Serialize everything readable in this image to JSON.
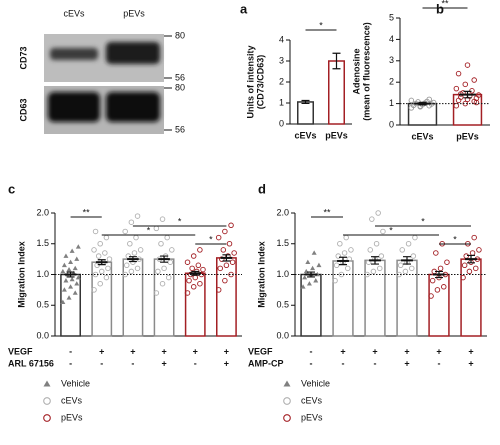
{
  "blot": {
    "columns": [
      "cEVs",
      "pEVs"
    ],
    "rows": [
      {
        "label": "CD73",
        "markers": [
          80,
          56
        ]
      },
      {
        "label": "CD63",
        "markers": [
          80,
          56
        ]
      }
    ]
  },
  "chart_data": [
    {
      "type": "bar",
      "panel": "a",
      "ylabel": [
        "Units of intensity",
        "(CD73/CD63)"
      ],
      "categories": [
        "cEVs",
        "pEVs"
      ],
      "values": [
        1.05,
        3.0
      ],
      "errors": [
        0.07,
        0.37
      ],
      "colors": [
        "#333333",
        "#a31f24"
      ],
      "ylim": [
        0,
        4
      ],
      "yticks": [
        0,
        1,
        2,
        3,
        4
      ],
      "significance": [
        {
          "between": [
            0,
            1
          ],
          "label": "*"
        }
      ]
    },
    {
      "type": "bar",
      "panel": "b",
      "ylabel": [
        "Adenosine",
        "(mean of fluorescence)"
      ],
      "categories": [
        "cEVs",
        "pEVs"
      ],
      "values": [
        1.0,
        1.42
      ],
      "errors": [
        0.06,
        0.15
      ],
      "colors": [
        "#333333",
        "#a31f24"
      ],
      "point_colors": [
        "#999999",
        "#a31f24"
      ],
      "points": [
        [
          0.8,
          0.85,
          0.9,
          0.92,
          0.95,
          0.98,
          1.0,
          1.02,
          1.05,
          1.08,
          1.1,
          1.15,
          0.88,
          1.2
        ],
        [
          0.9,
          1.0,
          1.1,
          1.15,
          1.2,
          1.25,
          1.3,
          1.35,
          1.4,
          1.5,
          1.6,
          1.7,
          1.9,
          2.1,
          2.4,
          2.8,
          1.05,
          1.45
        ]
      ],
      "ylim": [
        0,
        5
      ],
      "yticks": [
        0,
        1,
        2,
        3,
        4,
        5
      ],
      "reference_line": 1,
      "significance": [
        {
          "between": [
            0,
            1
          ],
          "label": "**"
        }
      ]
    },
    {
      "type": "bar",
      "panel": "c",
      "ylabel": [
        "Migration Index"
      ],
      "ylim": [
        0,
        2
      ],
      "yticks": [
        {
          "value": 0,
          "label": "0.0"
        },
        {
          "value": 0.5,
          "label": "0.5"
        },
        {
          "value": 1,
          "label": "1.0"
        },
        {
          "value": 1.5,
          "label": "1.5"
        },
        {
          "value": 2,
          "label": "2.0"
        }
      ],
      "reference_line": 1,
      "series": [
        {
          "name": "Vehicle",
          "marker": "triangle",
          "color": "#808080",
          "bar_color": "#333333",
          "values": [
            1.0
          ],
          "errors": [
            0.04
          ],
          "points": [
            [
              0.55,
              0.62,
              0.7,
              0.75,
              0.8,
              0.85,
              0.9,
              0.92,
              0.95,
              1.0,
              1.02,
              1.05,
              1.08,
              1.1,
              1.15,
              1.2,
              1.25,
              1.3,
              1.38,
              1.45
            ]
          ]
        },
        {
          "name": "cEVs",
          "marker": "circle",
          "color": "#b0b0b0",
          "bar_color": "#8a8a8a",
          "values": [
            1.2,
            1.25,
            1.25
          ],
          "errors": [
            0.04,
            0.04,
            0.05
          ],
          "points": [
            [
              0.75,
              0.85,
              0.95,
              1.0,
              1.05,
              1.1,
              1.15,
              1.2,
              1.25,
              1.3,
              1.35,
              1.4,
              1.5,
              1.6,
              1.7
            ],
            [
              1.0,
              1.05,
              1.1,
              1.15,
              1.2,
              1.25,
              1.3,
              1.35,
              1.4,
              1.5,
              1.6,
              1.7,
              1.85,
              1.95
            ],
            [
              0.7,
              0.85,
              0.95,
              1.05,
              1.1,
              1.2,
              1.25,
              1.3,
              1.4,
              1.5,
              1.6,
              1.75,
              1.9
            ]
          ]
        },
        {
          "name": "pEVs",
          "marker": "circle",
          "color": "#a31f24",
          "bar_color": "#a31f24",
          "values": [
            1.02,
            1.27
          ],
          "errors": [
            0.03,
            0.05
          ],
          "points": [
            [
              0.7,
              0.8,
              0.85,
              0.9,
              0.95,
              1.0,
              1.0,
              1.05,
              1.08,
              1.1,
              1.15,
              1.2,
              1.3,
              1.4
            ],
            [
              0.75,
              0.9,
              1.0,
              1.1,
              1.15,
              1.2,
              1.25,
              1.3,
              1.35,
              1.4,
              1.5,
              1.6,
              1.7,
              1.8
            ]
          ]
        }
      ],
      "conditions": [
        {
          "label": "VEGF",
          "values": [
            "-",
            "+",
            "+",
            "+",
            "+",
            "+"
          ]
        },
        {
          "label": "ARL 67156",
          "values": [
            "-",
            "-",
            "-",
            "+",
            "-",
            "+"
          ]
        }
      ],
      "significance": [
        {
          "between": [
            0,
            1
          ],
          "label": "**"
        },
        {
          "between": [
            2,
            5
          ],
          "label": "*"
        },
        {
          "between": [
            1,
            4
          ],
          "label": "*"
        },
        {
          "between": [
            4,
            5
          ],
          "label": "*"
        }
      ]
    },
    {
      "type": "bar",
      "panel": "d",
      "ylabel": [
        "Migration Index"
      ],
      "ylim": [
        0,
        2
      ],
      "yticks": [
        {
          "value": 0,
          "label": "0.0"
        },
        {
          "value": 0.5,
          "label": "0.5"
        },
        {
          "value": 1,
          "label": "1.0"
        },
        {
          "value": 1.5,
          "label": "1.5"
        },
        {
          "value": 2,
          "label": "2.0"
        }
      ],
      "reference_line": 1,
      "series": [
        {
          "name": "Vehicle",
          "marker": "triangle",
          "color": "#808080",
          "bar_color": "#333333",
          "values": [
            1.0
          ],
          "errors": [
            0.04
          ],
          "points": [
            [
              0.8,
              0.85,
              0.9,
              0.95,
              1.0,
              1.0,
              1.05,
              1.1,
              1.15,
              1.2,
              1.35
            ]
          ]
        },
        {
          "name": "cEVs",
          "marker": "circle",
          "color": "#b0b0b0",
          "bar_color": "#8a8a8a",
          "values": [
            1.22,
            1.23,
            1.23
          ],
          "errors": [
            0.06,
            0.06,
            0.06
          ],
          "points": [
            [
              0.9,
              1.0,
              1.1,
              1.15,
              1.2,
              1.25,
              1.3,
              1.35,
              1.4,
              1.5,
              1.6
            ],
            [
              1.0,
              1.05,
              1.1,
              1.2,
              1.25,
              1.3,
              1.4,
              1.5,
              1.7,
              1.9,
              2.0
            ],
            [
              1.0,
              1.05,
              1.1,
              1.15,
              1.2,
              1.3,
              1.4,
              1.5,
              1.6
            ]
          ]
        },
        {
          "name": "pEVs",
          "marker": "circle",
          "color": "#a31f24",
          "bar_color": "#a31f24",
          "values": [
            1.0,
            1.25
          ],
          "errors": [
            0.05,
            0.06
          ],
          "points": [
            [
              0.65,
              0.75,
              0.8,
              0.9,
              0.95,
              1.0,
              1.05,
              1.1,
              1.2,
              1.35,
              1.5
            ],
            [
              0.95,
              1.05,
              1.1,
              1.15,
              1.2,
              1.25,
              1.3,
              1.35,
              1.4,
              1.5,
              1.6
            ]
          ]
        }
      ],
      "conditions": [
        {
          "label": "VEGF",
          "values": [
            "-",
            "+",
            "+",
            "+",
            "+",
            "+"
          ]
        },
        {
          "label": "AMP-CP",
          "values": [
            "-",
            "-",
            "-",
            "+",
            "-",
            "+"
          ]
        }
      ],
      "significance": [
        {
          "between": [
            0,
            1
          ],
          "label": "**"
        },
        {
          "between": [
            2,
            5
          ],
          "label": "*"
        },
        {
          "between": [
            1,
            4
          ],
          "label": "*"
        },
        {
          "between": [
            4,
            5
          ],
          "label": "*"
        }
      ]
    }
  ]
}
